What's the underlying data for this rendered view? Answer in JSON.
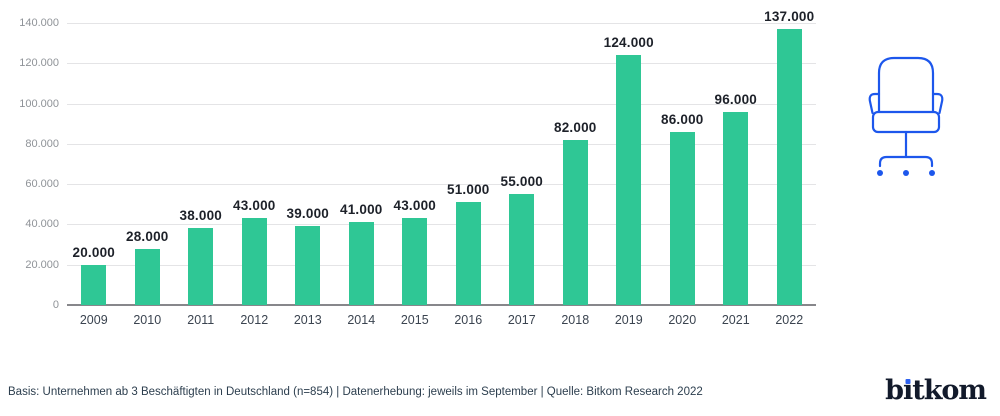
{
  "chart_data": {
    "type": "bar",
    "title": "",
    "categories": [
      "2009",
      "2010",
      "2011",
      "2012",
      "2013",
      "2014",
      "2015",
      "2016",
      "2017",
      "2018",
      "2019",
      "2020",
      "2021",
      "2022"
    ],
    "values": [
      20000,
      28000,
      38000,
      43000,
      39000,
      41000,
      43000,
      51000,
      55000,
      82000,
      124000,
      86000,
      96000,
      137000
    ],
    "value_labels": [
      "20.000",
      "28.000",
      "38.000",
      "43.000",
      "39.000",
      "41.000",
      "43.000",
      "51.000",
      "55.000",
      "82.000",
      "124.000",
      "86.000",
      "96.000",
      "137.000"
    ],
    "y_ticks": [
      {
        "value": 0,
        "label": "0"
      },
      {
        "value": 20000,
        "label": "20.000"
      },
      {
        "value": 40000,
        "label": "40.000"
      },
      {
        "value": 60000,
        "label": "60.000"
      },
      {
        "value": 80000,
        "label": "80.000"
      },
      {
        "value": 100000,
        "label": "100.000"
      },
      {
        "value": 120000,
        "label": "120.000"
      },
      {
        "value": 140000,
        "label": "140.000"
      }
    ],
    "ylim": [
      0,
      140000
    ],
    "xlabel": "",
    "ylabel": "",
    "grid": true,
    "legend": "none",
    "bar_color": "#2fc795"
  },
  "footer": {
    "source_note": "Basis: Unternehmen ab 3 Beschäftigten in Deutschland (n=854) | Datenerhebung: jeweils im September | Quelle: Bitkom Research 2022"
  },
  "branding": {
    "logo_text": "bitkom",
    "logo_color": "#121a2b",
    "logo_dot_color": "#2e62ef"
  },
  "icons": {
    "office_chair": {
      "name": "office-chair-icon",
      "color": "#1d57ec"
    }
  }
}
